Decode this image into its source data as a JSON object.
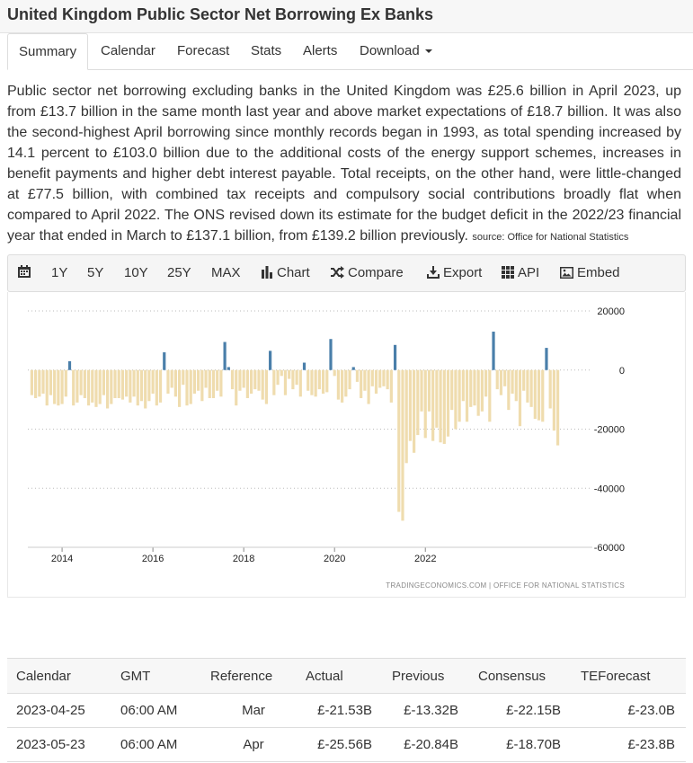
{
  "page": {
    "title": "United Kingdom Public Sector Net Borrowing Ex Banks"
  },
  "tabs": [
    "Summary",
    "Calendar",
    "Forecast",
    "Stats",
    "Alerts",
    "Download"
  ],
  "summary": {
    "text": "Public sector net borrowing excluding banks in the United Kingdom was £25.6 billion in April 2023, up from £13.7 billion in the same month last year and above market expectations of £18.7 billion. It was also the second-highest April borrowing since monthly records began in 1993, as total spending increased by 14.1 percent to £103.0 billion due to the additional costs of the energy support schemes, increases in benefit payments and higher debt interest payable. Total receipts, on the other hand, were little-changed at £77.5 billion, with combined tax receipts and compulsory social contributions broadly flat when compared to April 2022. The ONS revised down its estimate for the budget deficit in the 2022/23 financial year that ended in March to £137.1 billion, from £139.2 billion previously.",
    "source": "source: Office for National Statistics"
  },
  "toolbar": {
    "ranges": [
      "1Y",
      "5Y",
      "10Y",
      "25Y",
      "MAX"
    ],
    "chart": "Chart",
    "compare": "Compare",
    "export": "Export",
    "api": "API",
    "embed": "Embed",
    "icons": [
      "calendar-icon",
      "bar-chart-icon",
      "shuffle-icon",
      "download-icon",
      "grid-icon",
      "image-icon"
    ]
  },
  "chart_data": {
    "type": "bar",
    "x_ticks": [
      "2014",
      "2016",
      "2018",
      "2020",
      "2022"
    ],
    "y_ticks": [
      "20000",
      "0",
      "-20000",
      "-40000",
      "-60000"
    ],
    "ylim": [
      -60000,
      20000
    ],
    "grid": true,
    "watermark": "TRADINGECONOMICS.COM | OFFICE FOR NATIONAL STATISTICS",
    "colors": {
      "positive": "#4a7faa",
      "negative": "#efdcae"
    },
    "start": "2013-05",
    "values": [
      -8500,
      -9500,
      -9000,
      -8000,
      -12000,
      -8500,
      -11500,
      -12000,
      -11500,
      -9000,
      3000,
      -12000,
      -11000,
      -8500,
      -9500,
      -12000,
      -11000,
      -12500,
      -11500,
      -8500,
      -13000,
      -11500,
      -9500,
      -9500,
      -10000,
      -9000,
      -11000,
      -9000,
      -12000,
      -10500,
      -13000,
      -10500,
      -8000,
      -12000,
      -11000,
      6000,
      -8000,
      -6000,
      -9000,
      -12500,
      -5000,
      -12000,
      -11500,
      -8000,
      -7000,
      -10500,
      -6000,
      -9500,
      -9500,
      -7000,
      -9000,
      9500,
      1000,
      -6500,
      -12000,
      -7000,
      -6000,
      -9500,
      -8000,
      -6500,
      -7000,
      -10000,
      -11500,
      6500,
      -8500,
      -5000,
      -2000,
      -8500,
      -3000,
      -6500,
      -5000,
      -9000,
      2500,
      -7000,
      -8500,
      -9000,
      -6500,
      -8000,
      -7500,
      10500,
      -2000,
      -10000,
      -11000,
      -9000,
      -6500,
      1000,
      -4000,
      -9500,
      -7000,
      -11500,
      -5500,
      -8000,
      -6000,
      -5500,
      -6500,
      -11000,
      8500,
      -48000,
      -51000,
      -31500,
      -24000,
      -28000,
      -22000,
      -14000,
      -23000,
      -14000,
      -24000,
      -19500,
      -24500,
      -25000,
      -22500,
      -13500,
      -20000,
      -17500,
      -10500,
      -17500,
      -12500,
      -12000,
      -15500,
      -14000,
      -9000,
      -17500,
      13000,
      -6500,
      -8500,
      -5500,
      -13500,
      -8000,
      -10500,
      -19000,
      -7000,
      -11000,
      -12500,
      -16500,
      -17000,
      -17500,
      7500,
      -13000,
      -20500,
      -25500
    ]
  },
  "calendar_table": {
    "headers": [
      "Calendar",
      "GMT",
      "Reference",
      "Actual",
      "Previous",
      "Consensus",
      "TEForecast"
    ],
    "rows": [
      [
        "2023-04-25",
        "06:00 AM",
        "Mar",
        "£-21.53B",
        "£-13.32B",
        "£-22.15B",
        "£-23.0B"
      ],
      [
        "2023-05-23",
        "06:00 AM",
        "Apr",
        "£-25.56B",
        "£-20.84B",
        "£-18.70B",
        "£-23.8B"
      ]
    ]
  }
}
